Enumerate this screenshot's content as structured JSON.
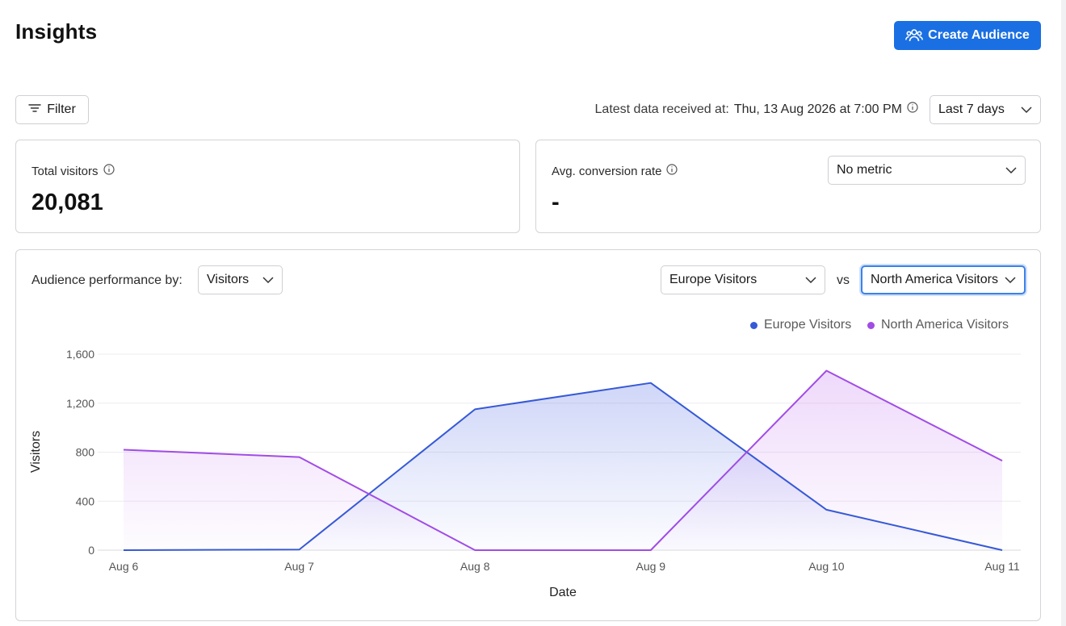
{
  "header": {
    "title": "Insights",
    "create_button_label": "Create Audience"
  },
  "toolbar": {
    "filter_label": "Filter",
    "latest_prefix": "Latest data received at:",
    "latest_value": "Thu, 13 Aug 2026 at 7:00 PM",
    "range_selected": "Last 7 days"
  },
  "metrics": {
    "total_visitors_label": "Total visitors",
    "total_visitors_value": "20,081",
    "conversion_label": "Avg. conversion rate",
    "conversion_value": "-",
    "conversion_metric_selected": "No metric"
  },
  "performance": {
    "label": "Audience performance by:",
    "metric_selected": "Visitors",
    "audience_a_selected": "Europe Visitors",
    "vs_label": "vs",
    "audience_b_selected": "North America Visitors"
  },
  "colors": {
    "primary": "#1a6fe3",
    "europe": "#3659d6",
    "north_america": "#a14ce6"
  },
  "icons": {
    "create": "people-icon",
    "filter": "filter-lines-icon",
    "info": "info-icon",
    "chevron": "chevron-down-icon"
  },
  "chart_data": {
    "type": "area",
    "categories": [
      "Aug 6",
      "Aug 7",
      "Aug 8",
      "Aug 9",
      "Aug 10",
      "Aug 11"
    ],
    "series": [
      {
        "name": "Europe Visitors",
        "values": [
          0,
          5,
          1150,
          1365,
          330,
          0
        ],
        "color": "#3659d6"
      },
      {
        "name": "North America Visitors",
        "values": [
          820,
          760,
          0,
          0,
          1465,
          730
        ],
        "color": "#a14ce6"
      }
    ],
    "xlabel": "Date",
    "ylabel": "Visitors",
    "ylim": [
      0,
      1600
    ],
    "yticks": [
      "0",
      "400",
      "800",
      "1,200",
      "1,600"
    ],
    "grid": true,
    "legend_position": "top-right"
  }
}
